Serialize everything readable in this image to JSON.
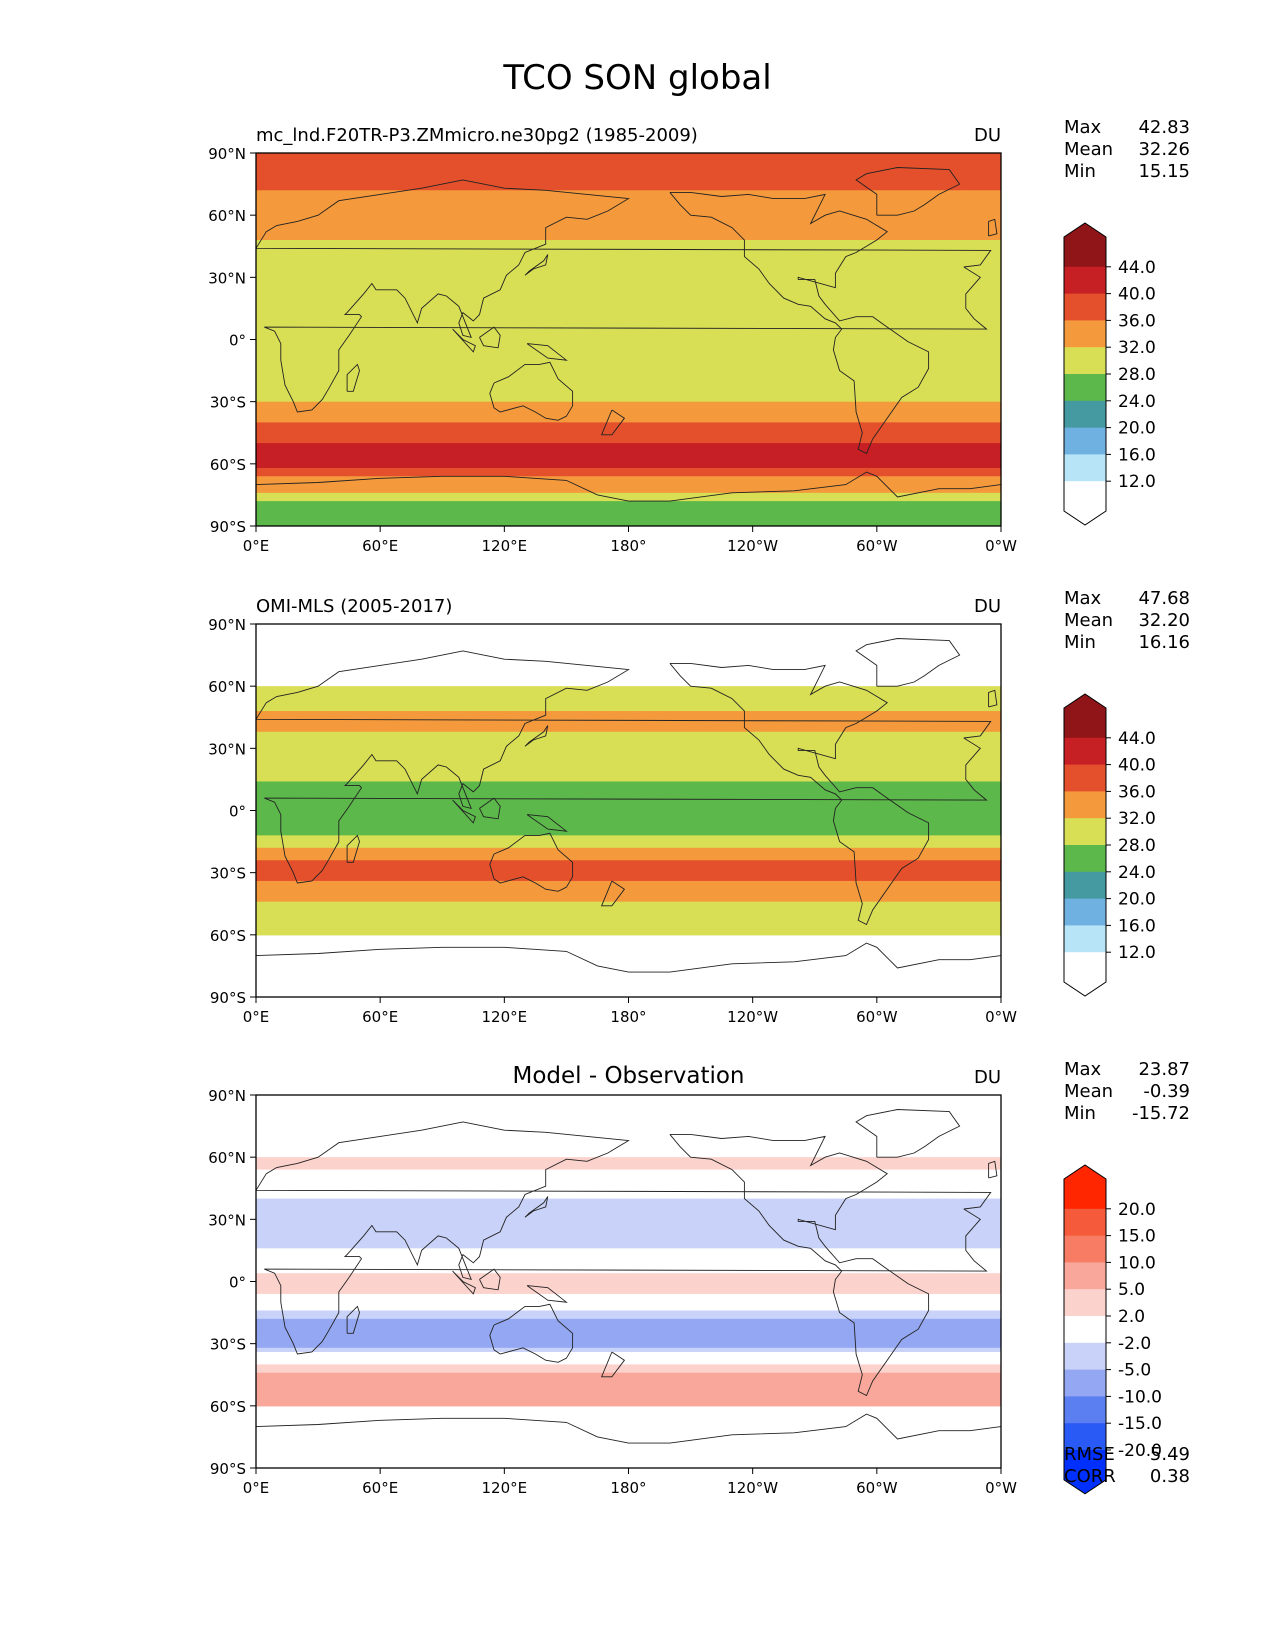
{
  "figure": {
    "title": "TCO SON global"
  },
  "colors": {
    "abs_levels": [
      "#ffffff",
      "#b8e4f8",
      "#6fb1e0",
      "#4599a0",
      "#5cb84a",
      "#d9df55",
      "#f49a3c",
      "#e5502c",
      "#c61f24",
      "#8f1518"
    ],
    "diff_levels": [
      "#0030ff",
      "#2a5af5",
      "#5b7ef0",
      "#94a7f2",
      "#c9d2f8",
      "#ffffff",
      "#fcd2cc",
      "#f9a79a",
      "#f87c64",
      "#f55a3a",
      "#ff2600"
    ]
  },
  "panels": [
    {
      "id": "model",
      "left_title": "mc_lnd.F20TR-P3.ZMmicro.ne30pg2 (1985-2009)",
      "center_title": "",
      "units": "DU",
      "stats": [
        {
          "label": "Max",
          "value": "42.83"
        },
        {
          "label": "Mean",
          "value": "32.26"
        },
        {
          "label": "Min",
          "value": "15.15"
        }
      ],
      "colorbar_ticks": [
        "44.0",
        "40.0",
        "36.0",
        "32.0",
        "28.0",
        "24.0",
        "20.0",
        "16.0",
        "12.0"
      ],
      "colorbar_kind": "abs"
    },
    {
      "id": "obs",
      "left_title": "OMI-MLS (2005-2017)",
      "center_title": "",
      "units": "DU",
      "stats": [
        {
          "label": "Max",
          "value": "47.68"
        },
        {
          "label": "Mean",
          "value": "32.20"
        },
        {
          "label": "Min",
          "value": "16.16"
        }
      ],
      "colorbar_ticks": [
        "44.0",
        "40.0",
        "36.0",
        "32.0",
        "28.0",
        "24.0",
        "20.0",
        "16.0",
        "12.0"
      ],
      "colorbar_kind": "abs"
    },
    {
      "id": "diff",
      "left_title": "",
      "center_title": "Model - Observation",
      "units": "DU",
      "stats": [
        {
          "label": "Max",
          "value": "23.87"
        },
        {
          "label": "Mean",
          "value": "-0.39"
        },
        {
          "label": "Min",
          "value": "-15.72"
        }
      ],
      "colorbar_ticks": [
        "20.0",
        "15.0",
        "10.0",
        "5.0",
        "2.0",
        "-2.0",
        "-5.0",
        "-10.0",
        "-15.0",
        "-20.0"
      ],
      "colorbar_kind": "diff",
      "extra_stats": [
        {
          "label": "RMSE",
          "value": "5.49"
        },
        {
          "label": "CORR",
          "value": "0.38"
        }
      ]
    }
  ],
  "chart_data": [
    {
      "type": "heatmap",
      "title": "mc_lnd.F20TR-P3.ZMmicro.ne30pg2 (1985-2009)",
      "units": "DU",
      "x_ticks": [
        "0°E",
        "60°E",
        "120°E",
        "180°",
        "120°W",
        "60°W",
        "0°W"
      ],
      "y_ticks": [
        "90°N",
        "60°N",
        "30°N",
        "0°",
        "30°S",
        "60°S",
        "90°S"
      ],
      "xlim": [
        0,
        360
      ],
      "ylim": [
        -90,
        90
      ],
      "levels": [
        12,
        16,
        20,
        24,
        28,
        32,
        36,
        40,
        44
      ],
      "stats": {
        "max": 42.83,
        "mean": 32.26,
        "min": 15.15
      },
      "zonal_profile": [
        {
          "lat": 90,
          "value": 36
        },
        {
          "lat": 72,
          "value": 36
        },
        {
          "lat": 60,
          "value": 33
        },
        {
          "lat": 48,
          "value": 32
        },
        {
          "lat": 35,
          "value": 29
        },
        {
          "lat": 0,
          "value": 28
        },
        {
          "lat": -22,
          "value": 29
        },
        {
          "lat": -30,
          "value": 32
        },
        {
          "lat": -40,
          "value": 36
        },
        {
          "lat": -50,
          "value": 40
        },
        {
          "lat": -60,
          "value": 41
        },
        {
          "lat": -65,
          "value": 37
        },
        {
          "lat": -72,
          "value": 33
        },
        {
          "lat": -80,
          "value": 27
        },
        {
          "lat": -90,
          "value": 26
        }
      ]
    },
    {
      "type": "heatmap",
      "title": "OMI-MLS (2005-2017)",
      "units": "DU",
      "x_ticks": [
        "0°E",
        "60°E",
        "120°E",
        "180°",
        "120°W",
        "60°W",
        "0°W"
      ],
      "y_ticks": [
        "90°N",
        "60°N",
        "30°N",
        "0°",
        "30°S",
        "60°S",
        "90°S"
      ],
      "xlim": [
        0,
        360
      ],
      "ylim": [
        -90,
        90
      ],
      "data_lat_range": [
        -60,
        60
      ],
      "levels": [
        12,
        16,
        20,
        24,
        28,
        32,
        36,
        40,
        44
      ],
      "stats": {
        "max": 47.68,
        "mean": 32.2,
        "min": 16.16
      },
      "zonal_profile": [
        {
          "lat": 60,
          "value": 29
        },
        {
          "lat": 45,
          "value": 33
        },
        {
          "lat": 25,
          "value": 30
        },
        {
          "lat": 10,
          "value": 27
        },
        {
          "lat": 0,
          "value": 25
        },
        {
          "lat": -10,
          "value": 27
        },
        {
          "lat": -20,
          "value": 34
        },
        {
          "lat": -30,
          "value": 38
        },
        {
          "lat": -38,
          "value": 34
        },
        {
          "lat": -50,
          "value": 30
        },
        {
          "lat": -60,
          "value": 29
        }
      ]
    },
    {
      "type": "heatmap",
      "title": "Model - Observation",
      "units": "DU",
      "x_ticks": [
        "0°E",
        "60°E",
        "120°E",
        "180°",
        "120°W",
        "60°W",
        "0°W"
      ],
      "y_ticks": [
        "90°N",
        "60°N",
        "30°N",
        "0°",
        "30°S",
        "60°S",
        "90°S"
      ],
      "xlim": [
        0,
        360
      ],
      "ylim": [
        -90,
        90
      ],
      "data_lat_range": [
        -60,
        60
      ],
      "levels": [
        -20,
        -15,
        -10,
        -5,
        -2,
        2,
        5,
        10,
        15,
        20
      ],
      "stats": {
        "max": 23.87,
        "mean": -0.39,
        "min": -15.72,
        "rmse": 5.49,
        "corr": 0.38
      },
      "zonal_profile": [
        {
          "lat": 60,
          "value": 3
        },
        {
          "lat": 50,
          "value": 1
        },
        {
          "lat": 35,
          "value": -4
        },
        {
          "lat": 20,
          "value": -3
        },
        {
          "lat": 10,
          "value": 0
        },
        {
          "lat": 0,
          "value": 3
        },
        {
          "lat": -10,
          "value": 1
        },
        {
          "lat": -20,
          "value": -6
        },
        {
          "lat": -30,
          "value": -7
        },
        {
          "lat": -37,
          "value": 0
        },
        {
          "lat": -45,
          "value": 6
        },
        {
          "lat": -60,
          "value": 7
        }
      ]
    }
  ]
}
